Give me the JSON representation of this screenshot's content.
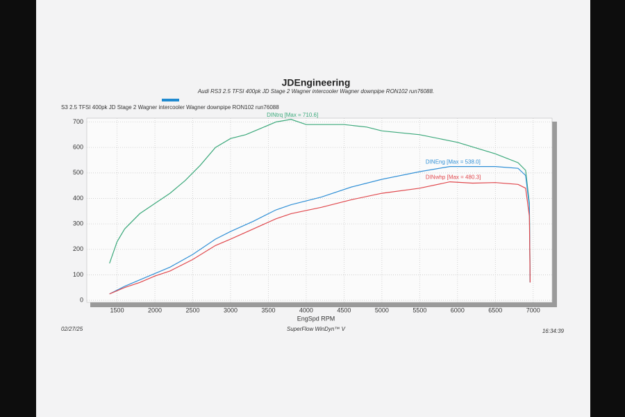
{
  "chart_data": {
    "type": "line",
    "title": "JDEngineering",
    "subtitle": "Audi RS3 2.5 TFSI 400pk  JD Stage 2  Wagner intercooler Wagner downpipe  RON102  run76088.",
    "header": "S3 2.5 TFSI 400pk  JD Stage 2  Wagner intercooler Wagner downpipe  RON102  run76088",
    "x_label": "EngSpd RPM",
    "date": "02/27/25",
    "footer": "SuperFlow WinDyn™ V",
    "time": "16:34:39",
    "xlim": [
      1100,
      7250
    ],
    "ylim": [
      -8,
      715
    ],
    "xticks": [
      1500,
      2000,
      2500,
      3000,
      3500,
      4000,
      4500,
      5000,
      5500,
      6000,
      6500,
      7000
    ],
    "yticks": [
      0,
      100,
      200,
      300,
      400,
      500,
      600,
      700
    ],
    "grid": true,
    "series": [
      {
        "name": "DINtrq [Max = 710.6]",
        "color": "#3aa87a",
        "x": [
          1400,
          1500,
          1600,
          1800,
          2000,
          2200,
          2400,
          2600,
          2800,
          3000,
          3200,
          3400,
          3600,
          3800,
          4000,
          4200,
          4500,
          4800,
          5000,
          5500,
          6000,
          6500,
          6800,
          6900,
          6950,
          6960
        ],
        "values": [
          145,
          230,
          280,
          340,
          380,
          420,
          470,
          530,
          600,
          635,
          650,
          675,
          700,
          710,
          690,
          690,
          690,
          680,
          665,
          650,
          620,
          575,
          540,
          510,
          380,
          70
        ]
      },
      {
        "name": "DINEng [Max = 538.0]",
        "color": "#2f8fd6",
        "x": [
          1400,
          1600,
          1800,
          2000,
          2200,
          2500,
          2800,
          3000,
          3300,
          3600,
          3800,
          4200,
          4600,
          5000,
          5500,
          5900,
          6200,
          6500,
          6800,
          6900,
          6950,
          6960
        ],
        "values": [
          25,
          55,
          80,
          105,
          130,
          180,
          240,
          270,
          310,
          355,
          375,
          405,
          445,
          475,
          505,
          525,
          525,
          525,
          518,
          490,
          370,
          70
        ]
      },
      {
        "name": "DINwhp [Max = 480.3]",
        "color": "#e0474c",
        "x": [
          1400,
          1600,
          1800,
          2000,
          2200,
          2500,
          2800,
          3000,
          3300,
          3600,
          3800,
          4200,
          4600,
          5000,
          5500,
          5900,
          6200,
          6500,
          6800,
          6900,
          6950,
          6960
        ],
        "values": [
          25,
          50,
          70,
          95,
          115,
          160,
          215,
          240,
          280,
          320,
          340,
          365,
          395,
          420,
          440,
          465,
          460,
          462,
          455,
          440,
          330,
          70
        ]
      }
    ]
  }
}
